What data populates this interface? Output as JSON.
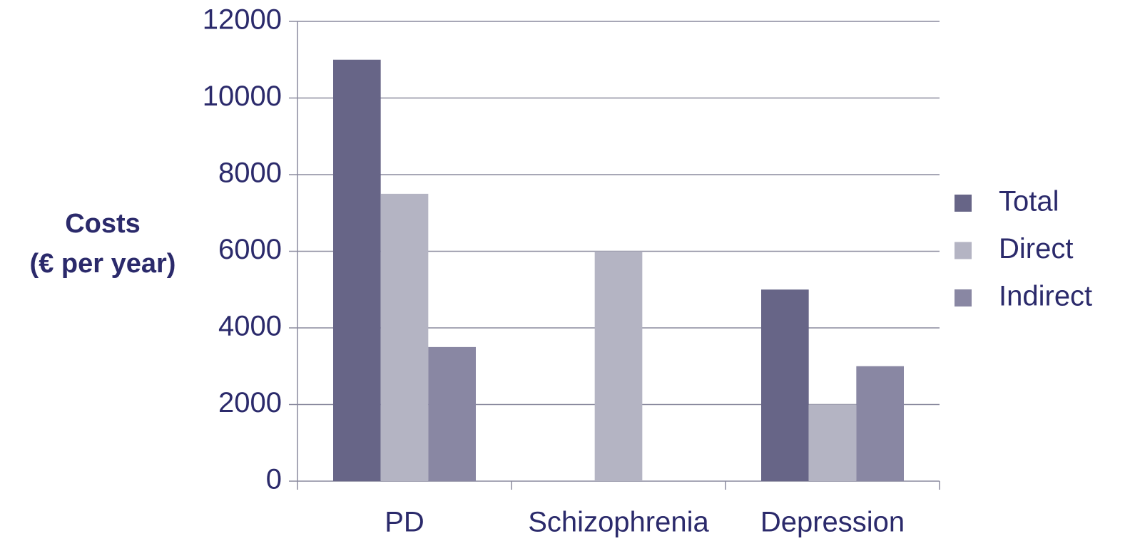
{
  "chart_data": {
    "type": "bar",
    "ylabel": [
      "Costs",
      "(€ per year)"
    ],
    "categories": [
      "PD",
      "Schizophrenia",
      "Depression"
    ],
    "series": [
      {
        "name": "Total",
        "color": "#676587",
        "values": [
          11000,
          null,
          5000
        ]
      },
      {
        "name": "Direct",
        "color": "#b4b4c3",
        "values": [
          7500,
          6000,
          2000
        ]
      },
      {
        "name": "Indirect",
        "color": "#8987a3",
        "values": [
          3500,
          null,
          3000
        ]
      }
    ],
    "ylim": [
      0,
      12000
    ],
    "yticks": [
      0,
      2000,
      4000,
      6000,
      8000,
      10000,
      12000
    ],
    "grid": true,
    "legend": "right"
  }
}
